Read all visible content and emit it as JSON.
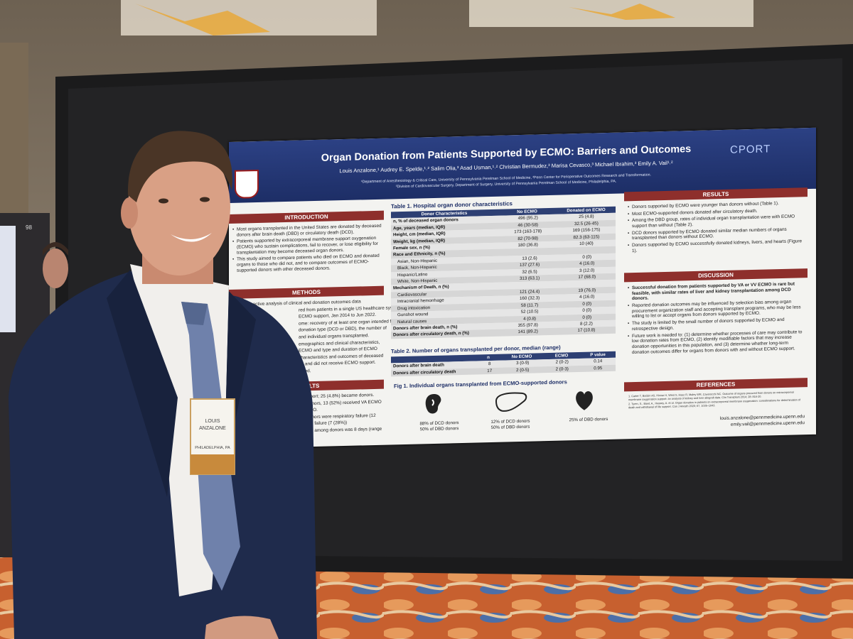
{
  "board_number": "98",
  "badge": {
    "lines": [
      "LOUIS",
      "ANZALONE",
      "PHILADELPHIA, PA"
    ]
  },
  "poster": {
    "title": "Organ Donation from Patients Supported by ECMO: Barriers and Outcomes",
    "authors": "Louis Anzalone,¹ Audrey E. Spelde,¹˒² Salim Olia,³ Asad Usman,¹˒² Christian Bermudez,³ Marisa Cevasco,³ Michael Ibrahim,³ Emily A. Vail¹˒²",
    "affiliations": [
      "¹Department of Anesthesiology & Critical Care, University of Pennsylvania Perelman School of Medicine, ²Penn Center for Perioperative Outcomes Research and Transformation.",
      "³Division of Cardiovascular Surgery, Department of Surgery, University of Pennsylvania Perelman School of Medicine, Philadelphia, PA."
    ],
    "logo": "CPORT",
    "introduction": {
      "heading": "INTRODUCTION",
      "bullets": [
        "Most organs transplanted in the United States are donated by deceased donors after brain death (DBD) or circulatory death (DCD).",
        "Patients supported by extracorporeal membrane support oxygenation (ECMO) who sustain complications, fail to recover, or lose eligibility for transplantation may become deceased organ donors.",
        "This study aimed to compare patients who died on ECMO and donated organs to those who did not, and to compare outcomes of ECMO-supported donors with other deceased donors."
      ]
    },
    "methods": {
      "heading": "METHODS",
      "lines": [
        "A retrospective analysis of clinical and donation outcomes data",
        "red from patients in a single US healthcare system who died",
        "ECMO support, Jan 2014 to Jun 2022.",
        "ome: recovery of at least one organ intended for",
        "donation type (DCD or DBD), the number of",
        "and individual organs transplanted.",
        "emographics and clinical characteristics,",
        "ECMO and type and duration of ECMO",
        "characteristics and outcomes of deceased",
        "ed and did not receive ECMO support.",
        "usted."
      ]
    },
    "results_left": {
      "heading": "RESULTS",
      "lines": [
        "support; 25 (4.8%) became donors.",
        "d donors, 13 (52%) received VA ECMO",
        "ECMO.",
        "g donors were respiratory failure (12",
        "heart failure (7 (28%))",
        "pport among donors was 8 days (range"
      ]
    },
    "table1": {
      "title": "Table 1. Hospital organ donor characteristics",
      "header": [
        "Donor Characteristics",
        "No ECMO",
        "Donated on ECMO"
      ],
      "rows": [
        [
          "n, % of deceased organ donors",
          "496 (95.2)",
          "25 (4.8)"
        ],
        [
          "Age, years (median, IQR)",
          "46 (30-58)",
          "32.5 (26-45)"
        ],
        [
          "Height, cm (median, IQR)",
          "173 (163-178)",
          "169 (156-175)"
        ],
        [
          "Weight, kg (median, IQR)",
          "82 (70-98)",
          "82.3 (63-115)"
        ],
        [
          "Female sex, n (%)",
          "180 (36.8)",
          "10 (40)"
        ],
        [
          "Race and Ethnicity, n (%)"
        ],
        [
          "Asian, Non-Hispanic",
          "13 (2.6)",
          "0 (0)"
        ],
        [
          "Black, Non-Hispanic",
          "137 (27.6)",
          "4 (16.0)"
        ],
        [
          "Hispanic/Latino",
          "32 (6.5)",
          "3 (12.0)"
        ],
        [
          "White, Non-Hispanic",
          "313 (63.1)",
          "17 (68.0)"
        ],
        [
          "Mechanism of Death, n (%)"
        ],
        [
          "Cardiovascular",
          "121 (24.4)",
          "19 (76.0)"
        ],
        [
          "Intracranial hemorrhage",
          "160 (32.3)",
          "4 (16.0)"
        ],
        [
          "Drug intoxication",
          "58 (11.7)",
          "0 (0)"
        ],
        [
          "Gunshot wound",
          "52 (10.5)",
          "0 (0)"
        ],
        [
          "Natural causes",
          "4 (0.8)",
          "0 (0)"
        ],
        [
          "Donors after brain death, n (%)",
          "355 (97.8)",
          "8 (2.2)"
        ],
        [
          "Donors after circulatory death, n (%)",
          "141 (89.2)",
          "17 (10.8)"
        ]
      ]
    },
    "table2": {
      "title": "Table 2. Number of organs transplanted per donor, median (range)",
      "header": [
        "n",
        "No ECMO",
        "ECMO",
        "P value"
      ],
      "rows": [
        [
          "Donors after brain death",
          "8",
          "3 (0-9)",
          "2 (0-2)",
          "0.14"
        ],
        [
          "Donors after circulatory death",
          "17",
          "2 (0-5)",
          "2 (0-3)",
          "0.95"
        ]
      ]
    },
    "figure": {
      "title": "Fig 1. Individual organs transplanted from ECMO-supported donors",
      "captions": [
        [
          "88% of DCD donors",
          "50% of DBD donors"
        ],
        [
          "12% of DCD donors",
          "50% of DBD donors"
        ],
        [
          "25% of DBD donors"
        ]
      ]
    },
    "results": {
      "heading": "RESULTS",
      "bullets": [
        "Donors supported by ECMO were younger than donors without (Table 1).",
        "Most ECMO-supported donors donated after circulatory death.",
        "Among the DBD group, rates of individual organ transplantation were with ECMO support than without (Table 2).",
        "DCD donors supported by ECMO donated similar median numbers of organs transplanted than donors without ECMO.",
        "Donors supported by ECMO successfully donated kidneys, livers, and hearts (Figure 1)."
      ]
    },
    "discussion": {
      "heading": "DISCUSSION",
      "bullets": [
        "Successful donation from patients supported by VA or VV ECMO is rare but feasible, with similar rates of liver and kidney transplantation among DCD donors.",
        "Reported donation outcomes may be influenced by selection bias among organ procurement organization staff and accepting transplant programs, who may be less willing to list or accept organs from donors supported by ECMO.",
        "The study is limited by the small number of donors supported by ECMO and retrospective design.",
        "Future work is needed to: (1) determine whether processes of care may contribute to low donation rates from ECMO, (2) identify modifiable factors that may increase donation opportunities in this population, and (3) determine whether long-term donation outcomes differ for organs from donors with and without ECMO support."
      ]
    },
    "references": {
      "heading": "REFERENCES",
      "items": [
        "1. Carter T, Bodzin AS, Hirose H, West S, Hasz R, Maley WR, Cavarocchi NC. Outcome of organs procured from donors on extracorporeal membrane oxygenation support: an analysis of kidney and liver allograft data. Clin Transplant 2014; 28: 816-20.",
        "2. Tyren, S., Bawt, A., Hassey, A. et al. Organ donation in patients on extracorporeal membrane oxygenation: considerations for determination of death and withdrawal of life support. Can J Anesth 2020; 67, 1035–1043."
      ]
    },
    "emails": [
      "louis.anzalone@pennmedicine.upenn.edu",
      "emily.vail@pennmedicine.upenn.edu"
    ]
  }
}
